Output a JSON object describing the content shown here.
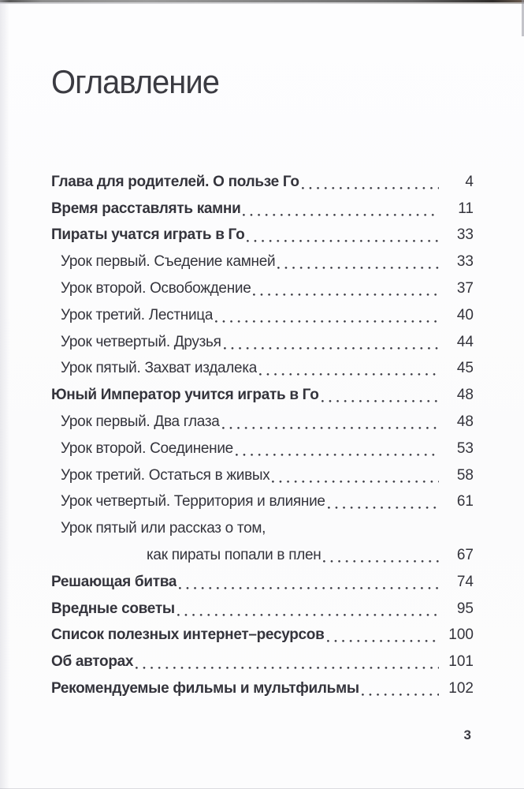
{
  "colors": {
    "text": "#34343c",
    "title": "#3b3b42",
    "paper": "#fcfcfd",
    "top_edge_dark": "#3a3a3a"
  },
  "page": {
    "title": "Оглавление",
    "current_page_number": "3"
  },
  "toc": {
    "entries": [
      {
        "level": "chapter",
        "label": "Глава для родителей. О пользе Го",
        "page": "4"
      },
      {
        "level": "chapter",
        "label": "Время расставлять камни",
        "page": "11"
      },
      {
        "level": "chapter",
        "label": "Пираты учатся играть в Го",
        "page": "33"
      },
      {
        "level": "lesson",
        "label": "Урок первый. Съедение камней",
        "page": "33"
      },
      {
        "level": "lesson",
        "label": "Урок второй. Освобождение",
        "page": "37"
      },
      {
        "level": "lesson",
        "label": "Урок третий. Лестница",
        "page": "40"
      },
      {
        "level": "lesson",
        "label": "Урок четвертый. Друзья",
        "page": "44"
      },
      {
        "level": "lesson",
        "label": "Урок пятый. Захват издалека",
        "page": "45"
      },
      {
        "level": "chapter",
        "label": "Юный Император учится играть в Го",
        "page": "48"
      },
      {
        "level": "lesson",
        "label": "Урок первый. Два глаза",
        "page": "48"
      },
      {
        "level": "lesson",
        "label": "Урок второй. Соединение",
        "page": "53"
      },
      {
        "level": "lesson",
        "label": "Урок третий. Остаться в живых",
        "page": "58"
      },
      {
        "level": "lesson",
        "label": "Урок четвертый. Территория и влияние",
        "page": "61"
      },
      {
        "level": "lesson-continuation-start",
        "label": "Урок пятый или рассказ о том,",
        "page": ""
      },
      {
        "level": "lesson-continuation-end",
        "label": "как пираты попали в плен",
        "page": "67"
      },
      {
        "level": "chapter",
        "label": "Решающая битва",
        "page": "74"
      },
      {
        "level": "chapter",
        "label": "Вредные советы",
        "page": "95"
      },
      {
        "level": "chapter",
        "label": "Список полезных интернет–ресурсов",
        "page": "100"
      },
      {
        "level": "chapter",
        "label": "Об авторах",
        "page": "101"
      },
      {
        "level": "chapter",
        "label": "Рекомендуемые фильмы и мультфильмы",
        "page": "102"
      }
    ]
  }
}
